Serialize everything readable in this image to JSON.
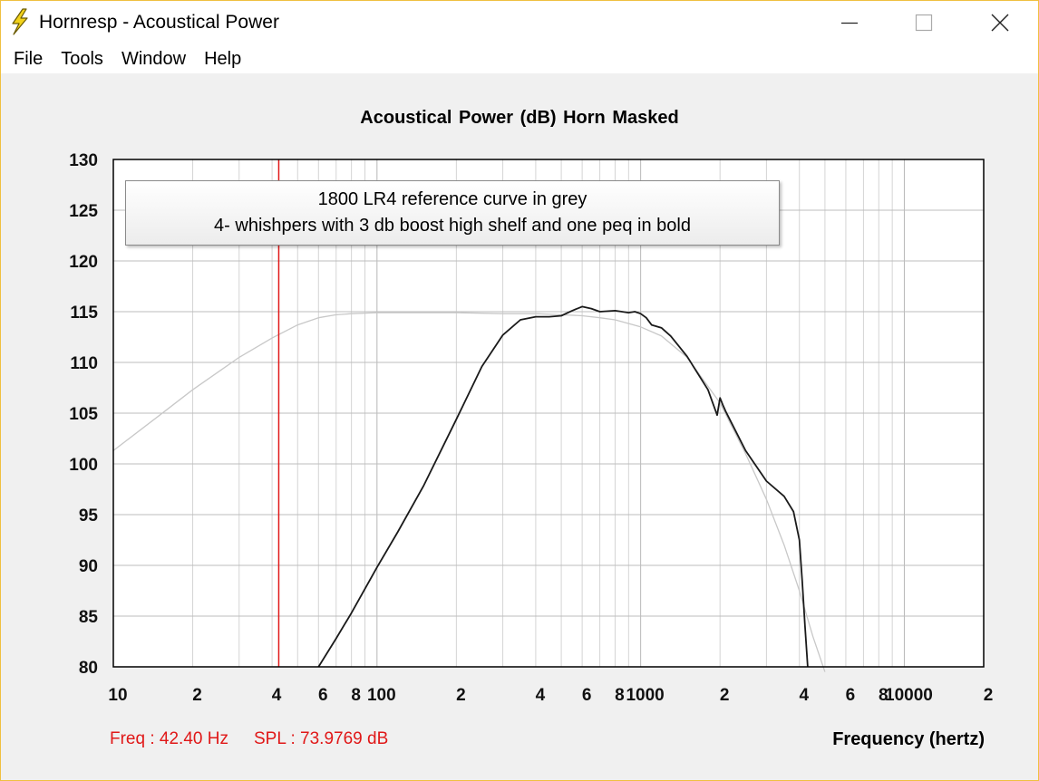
{
  "window": {
    "title": "Hornresp - Acoustical Power",
    "menu": [
      "File",
      "Tools",
      "Window",
      "Help"
    ]
  },
  "readout": {
    "freq": "Freq : 42.40 Hz",
    "spl": "SPL : 73.9769 dB"
  },
  "colors": {
    "cursor": "#e01818",
    "bold_curve": "#1a1a1a",
    "reference_curve": "#c8c8c8",
    "grid": "#d4d4d4"
  },
  "chart_data": {
    "type": "line",
    "title": "Acoustical Power (dB)    Horn    Masked",
    "xlabel": "Frequency (hertz)",
    "ylabel": "",
    "xscale": "log",
    "xlim": [
      10,
      20000
    ],
    "ylim": [
      80,
      130
    ],
    "yticks": [
      80,
      85,
      90,
      95,
      100,
      105,
      110,
      115,
      120,
      125,
      130
    ],
    "xtick_labels": [
      {
        "value": 10,
        "label": "10"
      },
      {
        "value": 20,
        "label": "2"
      },
      {
        "value": 40,
        "label": "4"
      },
      {
        "value": 60,
        "label": "6"
      },
      {
        "value": 80,
        "label": "8"
      },
      {
        "value": 100,
        "label": "100"
      },
      {
        "value": 200,
        "label": "2"
      },
      {
        "value": 400,
        "label": "4"
      },
      {
        "value": 600,
        "label": "6"
      },
      {
        "value": 800,
        "label": "8"
      },
      {
        "value": 1000,
        "label": "1000"
      },
      {
        "value": 2000,
        "label": "2"
      },
      {
        "value": 4000,
        "label": "4"
      },
      {
        "value": 6000,
        "label": "6"
      },
      {
        "value": 8000,
        "label": "8"
      },
      {
        "value": 10000,
        "label": "10000"
      },
      {
        "value": 20000,
        "label": "2"
      }
    ],
    "grid": true,
    "cursor_x": 42.4,
    "annotation": [
      "1800 LR4 reference curve in grey",
      "4- whishpers with 3 db boost high shelf and one peq in bold"
    ],
    "series": [
      {
        "style": "reference",
        "color": "#c8c8c8",
        "x": [
          10,
          15,
          20,
          30,
          40,
          50,
          60,
          70,
          80,
          100,
          150,
          200,
          300,
          400,
          500,
          600,
          700,
          800,
          1000,
          1200,
          1500,
          2000,
          2500,
          3000,
          3500,
          4000,
          4500,
          5000
        ],
        "y": [
          101.3,
          104.8,
          107.3,
          110.5,
          112.4,
          113.7,
          114.4,
          114.7,
          114.8,
          114.9,
          114.9,
          114.9,
          114.8,
          114.8,
          114.7,
          114.6,
          114.4,
          114.2,
          113.5,
          112.6,
          110.5,
          106.0,
          101.0,
          96.5,
          92.0,
          87.5,
          83.0,
          79.5
        ]
      },
      {
        "style": "bold",
        "color": "#1a1a1a",
        "x": [
          60,
          70,
          80,
          100,
          120,
          150,
          200,
          250,
          300,
          350,
          400,
          450,
          500,
          550,
          600,
          650,
          700,
          800,
          900,
          950,
          1000,
          1050,
          1100,
          1200,
          1300,
          1500,
          1800,
          1950,
          2000,
          2050,
          2100,
          2500,
          3000,
          3500,
          3800,
          4000,
          4100,
          4200,
          4300
        ],
        "y": [
          80.0,
          82.8,
          85.3,
          89.8,
          93.3,
          97.8,
          104.4,
          109.6,
          112.7,
          114.2,
          114.5,
          114.5,
          114.6,
          115.1,
          115.5,
          115.3,
          115.0,
          115.1,
          114.9,
          115.0,
          114.8,
          114.4,
          113.7,
          113.4,
          112.6,
          110.6,
          107.3,
          104.8,
          106.5,
          105.8,
          105.2,
          101.3,
          98.3,
          96.8,
          95.3,
          92.5,
          88.5,
          84.0,
          80.0
        ]
      }
    ]
  }
}
